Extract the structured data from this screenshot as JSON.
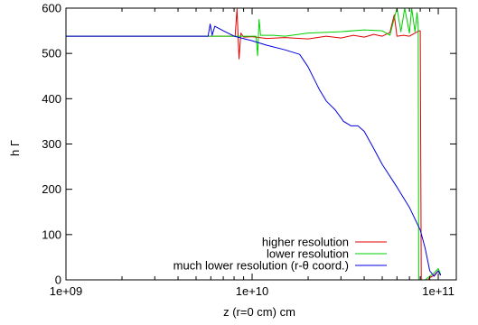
{
  "chart_data": {
    "type": "line",
    "title": "",
    "xlabel": "z (r=0 cm) cm",
    "ylabel": "h Γ",
    "xscale": "log",
    "xlim": [
      1000000000.0,
      125000000000.0
    ],
    "ylim": [
      0,
      600
    ],
    "x_ticks": [
      1000000000.0,
      10000000000.0,
      100000000000.0
    ],
    "x_tick_labels": [
      "1e+09",
      "1e+10",
      "1e+11"
    ],
    "y_ticks": [
      0,
      100,
      200,
      300,
      400,
      500,
      600
    ],
    "y_tick_labels": [
      "0",
      "100",
      "200",
      "300",
      "400",
      "500",
      "600"
    ],
    "grid": false,
    "legend_position": "bottom-right",
    "series": [
      {
        "name": "higher resolution",
        "color": "#e00000",
        "points": [
          [
            1000000000.0,
            538
          ],
          [
            5000000000.0,
            538
          ],
          [
            7900000000.0,
            538
          ],
          [
            8100000000.0,
            538
          ],
          [
            8300000000.0,
            598
          ],
          [
            8500000000.0,
            488
          ],
          [
            8700000000.0,
            545
          ],
          [
            9000000000.0,
            536
          ],
          [
            10000000000.0,
            537
          ],
          [
            12000000000.0,
            533
          ],
          [
            15000000000.0,
            535
          ],
          [
            20000000000.0,
            532
          ],
          [
            25000000000.0,
            538
          ],
          [
            30000000000.0,
            534
          ],
          [
            35000000000.0,
            540
          ],
          [
            40000000000.0,
            536
          ],
          [
            45000000000.0,
            542
          ],
          [
            50000000000.0,
            538
          ],
          [
            55000000000.0,
            546
          ],
          [
            58000000000.0,
            585
          ],
          [
            60000000000.0,
            538
          ],
          [
            65000000000.0,
            540
          ],
          [
            70000000000.0,
            538
          ],
          [
            75000000000.0,
            545
          ],
          [
            79000000000.0,
            550
          ],
          [
            80000000000.0,
            550
          ],
          [
            81000000000.0,
            0
          ],
          [
            88000000000.0,
            0
          ],
          [
            90000000000.0,
            5
          ],
          [
            95000000000.0,
            10
          ],
          [
            100000000000.0,
            20
          ],
          [
            103000000000.0,
            10
          ]
        ]
      },
      {
        "name": "lower resolution",
        "color": "#00d000",
        "points": [
          [
            1000000000.0,
            538
          ],
          [
            5000000000.0,
            538
          ],
          [
            8000000000.0,
            538
          ],
          [
            9500000000.0,
            538
          ],
          [
            10500000000.0,
            538
          ],
          [
            10700000000.0,
            495
          ],
          [
            10900000000.0,
            575
          ],
          [
            11100000000.0,
            540
          ],
          [
            13000000000.0,
            540
          ],
          [
            15000000000.0,
            538
          ],
          [
            20000000000.0,
            545
          ],
          [
            30000000000.0,
            548
          ],
          [
            40000000000.0,
            552
          ],
          [
            50000000000.0,
            550
          ],
          [
            55000000000.0,
            540
          ],
          [
            60000000000.0,
            600
          ],
          [
            63000000000.0,
            548
          ],
          [
            66000000000.0,
            600
          ],
          [
            70000000000.0,
            545
          ],
          [
            72000000000.0,
            600
          ],
          [
            75000000000.0,
            548
          ],
          [
            77000000000.0,
            590
          ],
          [
            78000000000.0,
            560
          ],
          [
            78500000000.0,
            0
          ],
          [
            85000000000.0,
            0
          ],
          [
            90000000000.0,
            8
          ],
          [
            95000000000.0,
            15
          ],
          [
            100000000000.0,
            25
          ],
          [
            103000000000.0,
            12
          ]
        ]
      },
      {
        "name": "much lower resolution (r-θ coord.)",
        "color": "#0000e0",
        "points": [
          [
            1000000000.0,
            538
          ],
          [
            5000000000.0,
            538
          ],
          [
            5800000000.0,
            538
          ],
          [
            5950000000.0,
            565
          ],
          [
            6100000000.0,
            540
          ],
          [
            6300000000.0,
            560
          ],
          [
            7000000000.0,
            550
          ],
          [
            8000000000.0,
            538
          ],
          [
            10000000000.0,
            528
          ],
          [
            12000000000.0,
            518
          ],
          [
            15000000000.0,
            508
          ],
          [
            18000000000.0,
            498
          ],
          [
            20000000000.0,
            470
          ],
          [
            23000000000.0,
            420
          ],
          [
            25000000000.0,
            395
          ],
          [
            28000000000.0,
            375
          ],
          [
            31000000000.0,
            350
          ],
          [
            34000000000.0,
            340
          ],
          [
            37000000000.0,
            340
          ],
          [
            40000000000.0,
            328
          ],
          [
            45000000000.0,
            290
          ],
          [
            50000000000.0,
            255
          ],
          [
            60000000000.0,
            205
          ],
          [
            70000000000.0,
            160
          ],
          [
            80000000000.0,
            110
          ],
          [
            85000000000.0,
            70
          ],
          [
            90000000000.0,
            20
          ],
          [
            95000000000.0,
            8
          ],
          [
            100000000000.0,
            20
          ],
          [
            103000000000.0,
            10
          ]
        ]
      }
    ]
  }
}
